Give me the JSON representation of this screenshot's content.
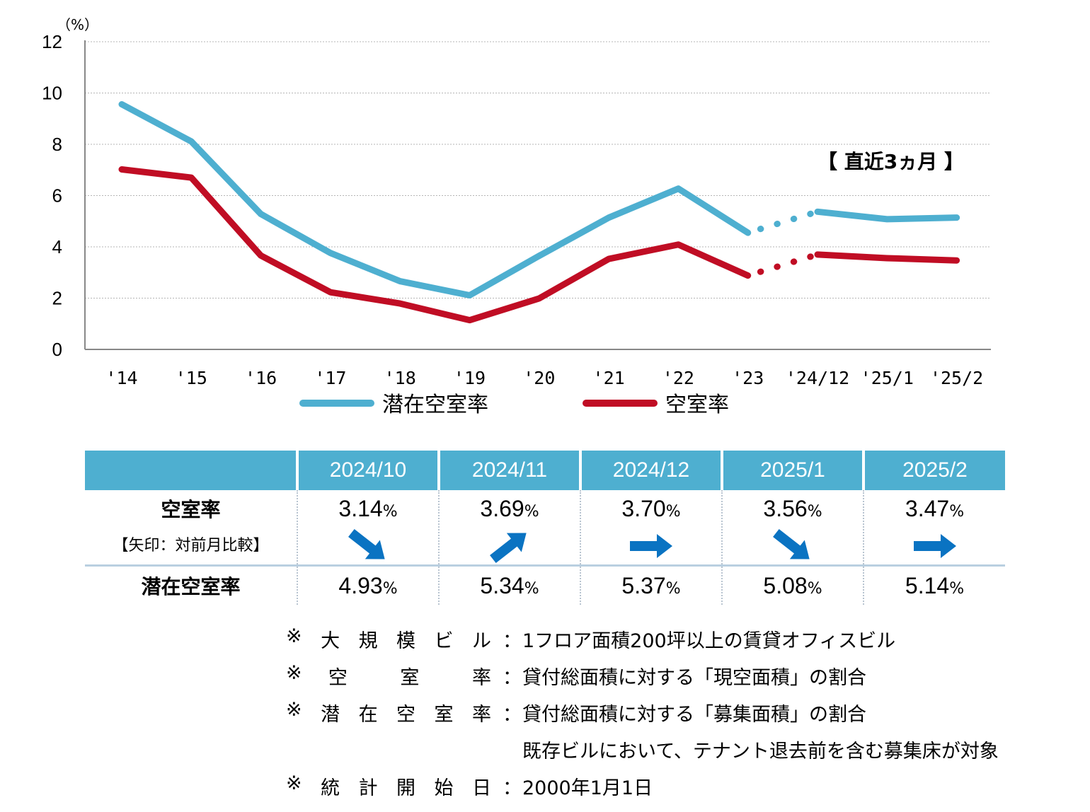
{
  "chart_data": {
    "type": "line",
    "ylabel_unit": "（%）",
    "ylim": [
      0,
      12
    ],
    "yticks": [
      "0",
      "2",
      "4",
      "6",
      "8",
      "10",
      "12"
    ],
    "categories": [
      "'14",
      "'15",
      "'16",
      "'17",
      "'18",
      "'19",
      "'20",
      "'21",
      "'22",
      "'23",
      "'24/12",
      "'25/1",
      "'25/2"
    ],
    "grid": true,
    "annotation": "【 直近3ヵ月 】",
    "series": [
      {
        "name": "潜在空室率",
        "color": "#4eafd0",
        "values": [
          9.56,
          8.11,
          5.28,
          3.76,
          2.66,
          2.11,
          3.65,
          5.14,
          6.27,
          4.55,
          5.37,
          5.08,
          5.14
        ]
      },
      {
        "name": "空室率",
        "color": "#c00d24",
        "values": [
          7.02,
          6.7,
          3.66,
          2.23,
          1.79,
          1.14,
          1.99,
          3.53,
          4.09,
          2.88,
          3.7,
          3.56,
          3.47
        ]
      }
    ],
    "dotted_segment_between": [
      "'23",
      "'24/12"
    ],
    "legend_position": "bottom"
  },
  "table": {
    "header_blank": "",
    "months": [
      "2024/10",
      "2024/11",
      "2024/12",
      "2025/1",
      "2025/2"
    ],
    "row_vacancy_label": "空室率",
    "row_vacancy_sublabel": "【矢印：対前月比較】",
    "vacancy": [
      "3.14",
      "3.69",
      "3.70",
      "3.56",
      "3.47"
    ],
    "arrows": [
      "down-right",
      "up-right",
      "right",
      "down-right",
      "right"
    ],
    "row_potential_label": "潜在空室率",
    "potential": [
      "4.93",
      "5.34",
      "5.37",
      "5.08",
      "5.14"
    ],
    "pct": "%",
    "arrow_color": "#0a73c2"
  },
  "notes": [
    {
      "key": [
        "※",
        "大",
        "規",
        "模",
        "ビ",
        "ル"
      ],
      "colon": "：",
      "value": "1フロア面積200坪以上の賃貸オフィスビル"
    },
    {
      "key": [
        "※",
        "空",
        "",
        "室",
        "",
        "率"
      ],
      "colon": "：",
      "value": "貸付総面積に対する「現空面積」の割合"
    },
    {
      "key": [
        "※",
        "潜",
        "在",
        "空",
        "室",
        "率"
      ],
      "colon": "：",
      "value": "貸付総面積に対する「募集面積」の割合"
    },
    {
      "key": [],
      "colon": "",
      "value": "既存ビルにおいて、テナント退去前を含む募集床が対象"
    },
    {
      "key": [
        "※",
        "統",
        "計",
        "開",
        "始",
        "日"
      ],
      "colon": "：",
      "value": "2000年1月1日"
    }
  ]
}
